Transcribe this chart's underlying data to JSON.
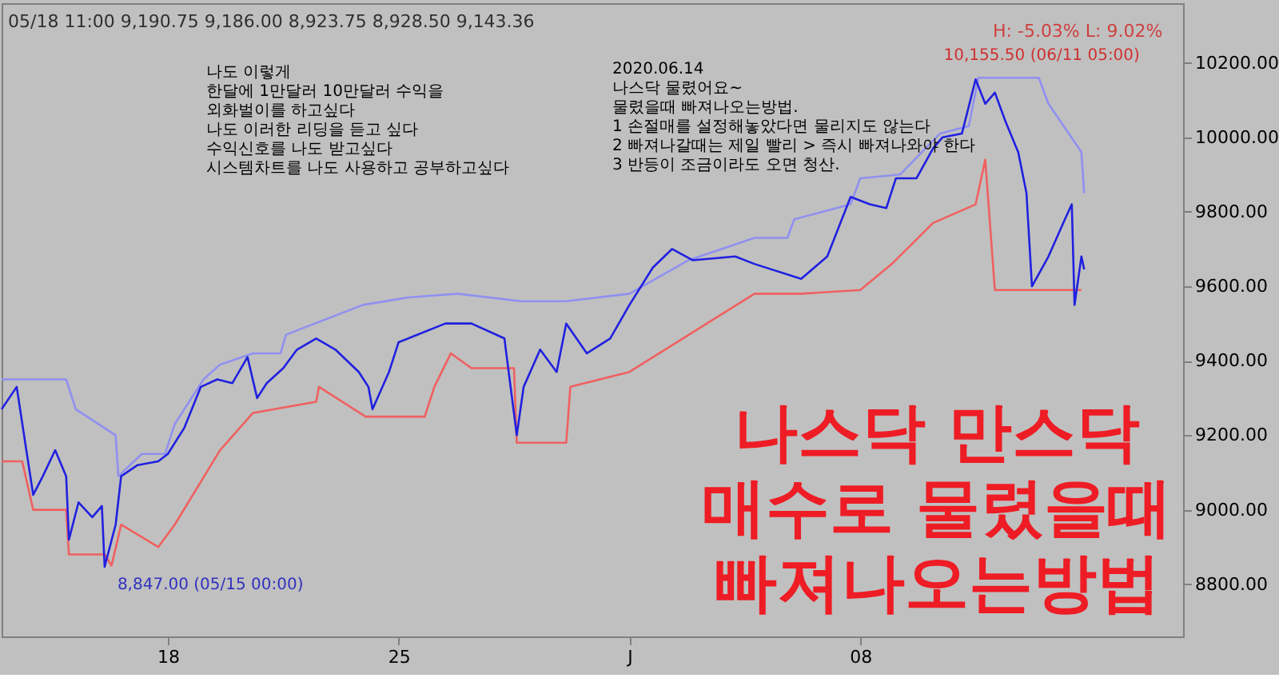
{
  "chart_data": {
    "type": "line",
    "title": "나스닥 만스닥\n매수로 물렸을때\n빠져나오는방법",
    "xlim": [
      "2020-05-12T23:00",
      "2020-06-17T19:00"
    ],
    "xticks": [
      {
        "value": "2020-05-18",
        "label": "18"
      },
      {
        "value": "2020-05-25",
        "label": "25"
      },
      {
        "value": "2020-06-01",
        "label": "J"
      },
      {
        "value": "2020-06-08",
        "label": "08"
      }
    ],
    "ylim": [
      8660,
      10360
    ],
    "yticks": [
      {
        "value": 8800,
        "label": "8800.00"
      },
      {
        "value": 9000,
        "label": "9000.00"
      },
      {
        "value": 9200,
        "label": "9200.00"
      },
      {
        "value": 9400,
        "label": "9400.00"
      },
      {
        "value": 9600,
        "label": "9600.00"
      },
      {
        "value": 9800,
        "label": "9800.00"
      },
      {
        "value": 10000,
        "label": "10000.00"
      },
      {
        "value": 10200,
        "label": "10200.00"
      }
    ],
    "grid": false,
    "marker": "none",
    "line_style": "solid",
    "series": [
      {
        "color": "#9090f0",
        "x": [
          "2020-05-12T23:00",
          "2020-05-14T22:00",
          "2020-05-15T05:00",
          "2020-05-16T10:00",
          "2020-05-16T12:00",
          "2020-05-17T05:00",
          "2020-05-17T22:00",
          "2020-05-18T05:00",
          "2020-05-19T02:00",
          "2020-05-19T14:00",
          "2020-05-20T14:00",
          "2020-05-21T10:00",
          "2020-05-21T14:00",
          "2020-05-23T22:00",
          "2020-05-25T07:00",
          "2020-05-26T19:00",
          "2020-05-28T17:00",
          "2020-05-30T02:00",
          "2020-06-01T00:00",
          "2020-06-02T19:00",
          "2020-06-04T19:00",
          "2020-06-05T19:00",
          "2020-06-06T00:00",
          "2020-06-07T17:00",
          "2020-06-08T00:00",
          "2020-06-09T05:00",
          "2020-06-10T10:00",
          "2020-06-11T07:00",
          "2020-06-11T14:00",
          "2020-06-13T10:00",
          "2020-06-13T17:00",
          "2020-06-14T17:00",
          "2020-06-14T19:00"
        ],
        "values": [
          9350,
          9350,
          9270,
          9200,
          9090,
          9150,
          9150,
          9230,
          9350,
          9390,
          9420,
          9420,
          9470,
          9550,
          9570,
          9580,
          9560,
          9560,
          9580,
          9670,
          9730,
          9730,
          9780,
          9820,
          9890,
          9900,
          10010,
          10030,
          10160,
          10160,
          10090,
          9960,
          9850
        ]
      },
      {
        "color": "#f06060",
        "x": [
          "2020-05-12T23:00",
          "2020-05-13T14:00",
          "2020-05-13T22:00",
          "2020-05-14T22:00",
          "2020-05-15T00:00",
          "2020-05-16T02:00",
          "2020-05-16T07:00",
          "2020-05-16T14:00",
          "2020-05-17T17:00",
          "2020-05-18T05:00",
          "2020-05-19T14:00",
          "2020-05-20T14:00",
          "2020-05-22T12:00",
          "2020-05-22T14:00",
          "2020-05-24T00:00",
          "2020-05-25T19:00",
          "2020-05-26T02:00",
          "2020-05-26T14:00",
          "2020-05-27T05:00",
          "2020-05-28T12:00",
          "2020-05-28T14:00",
          "2020-05-30T02:00",
          "2020-05-30T05:00",
          "2020-06-01T00:00",
          "2020-06-04T19:00",
          "2020-06-06T05:00",
          "2020-06-08T00:00",
          "2020-06-08T23:00",
          "2020-06-10T05:00",
          "2020-06-11T12:00",
          "2020-06-11T19:00",
          "2020-06-12T02:00",
          "2020-06-14T17:00"
        ],
        "values": [
          9130,
          9130,
          9000,
          9000,
          8880,
          8880,
          8850,
          8960,
          8900,
          8960,
          9160,
          9260,
          9290,
          9330,
          9250,
          9250,
          9330,
          9420,
          9380,
          9380,
          9180,
          9180,
          9330,
          9370,
          9580,
          9580,
          9590,
          9660,
          9770,
          9820,
          9940,
          9590,
          9590
        ]
      },
      {
        "color": "#2020e0",
        "x": [
          "2020-05-12T23:00",
          "2020-05-13T10:00",
          "2020-05-13T17:00",
          "2020-05-13T22:00",
          "2020-05-14T05:00",
          "2020-05-14T14:00",
          "2020-05-14T22:00",
          "2020-05-15T00:00",
          "2020-05-15T07:00",
          "2020-05-15T17:00",
          "2020-05-16T00:00",
          "2020-05-16T02:00",
          "2020-05-16T10:00",
          "2020-05-16T14:00",
          "2020-05-17T02:00",
          "2020-05-17T17:00",
          "2020-05-18T00:00",
          "2020-05-18T12:00",
          "2020-05-19T00:00",
          "2020-05-19T12:00",
          "2020-05-19T23:00",
          "2020-05-20T10:00",
          "2020-05-20T17:00",
          "2020-05-21T00:00",
          "2020-05-21T12:00",
          "2020-05-21T22:00",
          "2020-05-22T12:00",
          "2020-05-23T02:00",
          "2020-05-23T19:00",
          "2020-05-24T02:00",
          "2020-05-24T05:00",
          "2020-05-24T17:00",
          "2020-05-25T00:00",
          "2020-05-25T07:00",
          "2020-05-26T10:00",
          "2020-05-27T05:00",
          "2020-05-28T05:00",
          "2020-05-28T14:00",
          "2020-05-28T19:00",
          "2020-05-29T07:00",
          "2020-05-29T19:00",
          "2020-05-30T02:00",
          "2020-05-30T17:00",
          "2020-05-31T10:00",
          "2020-06-01T00:00",
          "2020-06-01T17:00",
          "2020-06-02T07:00",
          "2020-06-02T22:00",
          "2020-06-04T05:00",
          "2020-06-04T19:00",
          "2020-06-06T05:00",
          "2020-06-07T00:00",
          "2020-06-07T17:00",
          "2020-06-08T07:00",
          "2020-06-08T19:00",
          "2020-06-09T02:00",
          "2020-06-09T17:00",
          "2020-06-10T05:00",
          "2020-06-10T12:00",
          "2020-06-11T02:00",
          "2020-06-11T12:00",
          "2020-06-11T19:00",
          "2020-06-12T02:00",
          "2020-06-12T10:00",
          "2020-06-12T19:00",
          "2020-06-13T01:00",
          "2020-06-13T05:00",
          "2020-06-13T17:00",
          "2020-06-14T05:00",
          "2020-06-14T10:00",
          "2020-06-14T12:00",
          "2020-06-14T17:00",
          "2020-06-14T19:00"
        ],
        "values": [
          9270,
          9330,
          9160,
          9040,
          9090,
          9160,
          9090,
          8920,
          9020,
          8980,
          9010,
          8847,
          8960,
          9090,
          9120,
          9130,
          9150,
          9220,
          9330,
          9350,
          9340,
          9410,
          9300,
          9340,
          9380,
          9430,
          9460,
          9430,
          9370,
          9330,
          9270,
          9370,
          9450,
          9460,
          9500,
          9500,
          9460,
          9200,
          9330,
          9430,
          9370,
          9500,
          9420,
          9460,
          9550,
          9650,
          9700,
          9670,
          9680,
          9660,
          9620,
          9680,
          9840,
          9820,
          9810,
          9890,
          9890,
          9970,
          10000,
          10010,
          10155.5,
          10090,
          10120,
          10040,
          9960,
          9850,
          9600,
          9680,
          9780,
          9820,
          9550,
          9680,
          9645
        ]
      }
    ],
    "annotations": [
      "05/18 11:00  9,190.75  9,186.00  8,923.75  8,928.50  9,143.36",
      "H: -5.03%  L: 9.02%",
      "나도 이렇게\n한달에 1만달러 10만달러 수익을\n외화벌이를 하고싶다\n\n나도 이러한 리딩을 듣고 싶다\n수익신호를 나도 받고싶다\n시스템차트를 나도 사용하고 공부하고싶다",
      "2020.06.14\n나스닥 물렸어요~\n물렸을때 빠져나오는방법.\n\n1 손절매를 설정해놓았다면 물리지도 않는다\n2 빠져나갈때는 제일 빨리 > 즉시 빠져나와야 한다\n3 반등이 조금이라도 오면 청산.",
      {
        "text": "10,155.50 (06/11 05:00)",
        "x": "2020-06-11T12:00",
        "y": 10155.5
      },
      {
        "text": "8,847.00 (05/15 00:00)",
        "x": "2020-05-16T02:00",
        "y": 8847
      }
    ]
  }
}
